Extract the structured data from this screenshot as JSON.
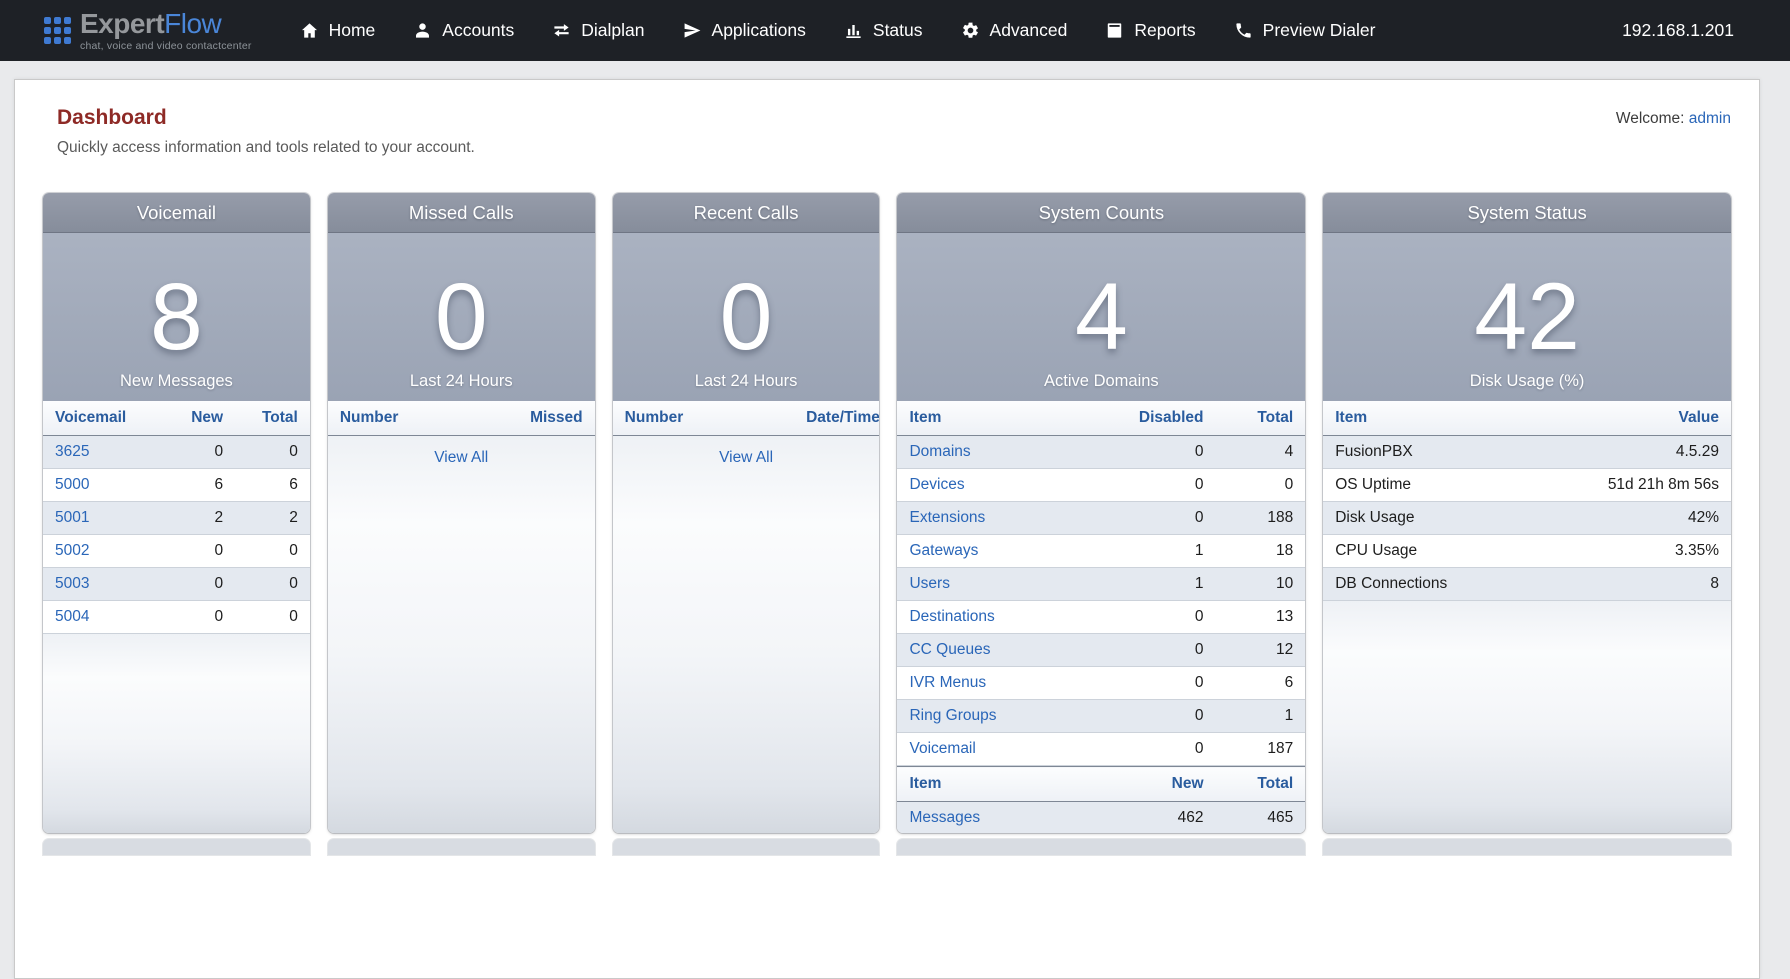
{
  "nav": {
    "logo": {
      "brand_primary": "Expert",
      "brand_secondary": "Flow",
      "tagline": "chat, voice and video contactcenter"
    },
    "items": [
      {
        "id": "home",
        "label": "Home"
      },
      {
        "id": "accounts",
        "label": "Accounts"
      },
      {
        "id": "dialplan",
        "label": "Dialplan"
      },
      {
        "id": "applications",
        "label": "Applications"
      },
      {
        "id": "status",
        "label": "Status"
      },
      {
        "id": "advanced",
        "label": "Advanced"
      },
      {
        "id": "reports",
        "label": "Reports"
      },
      {
        "id": "preview-dialer",
        "label": "Preview Dialer"
      }
    ],
    "server_ip": "192.168.1.201"
  },
  "page": {
    "title": "Dashboard",
    "subtitle": "Quickly access information and tools related to your account.",
    "welcome_label": "Welcome:",
    "welcome_user": "admin"
  },
  "panels": [
    {
      "id": "voicemail",
      "title": "Voicemail",
      "metric": "8",
      "caption": "New Messages",
      "tables": [
        {
          "headers": [
            "Voicemail",
            "New",
            "Total"
          ],
          "first_col_links": true,
          "rows": [
            [
              "3625",
              "0",
              "0"
            ],
            [
              "5000",
              "6",
              "6"
            ],
            [
              "5001",
              "2",
              "2"
            ],
            [
              "5002",
              "0",
              "0"
            ],
            [
              "5003",
              "0",
              "0"
            ],
            [
              "5004",
              "0",
              "0"
            ]
          ]
        }
      ]
    },
    {
      "id": "missed-calls",
      "title": "Missed Calls",
      "metric": "0",
      "caption": "Last 24 Hours",
      "tables": [
        {
          "headers": [
            "Number",
            "Missed"
          ],
          "first_col_links": false,
          "rows": []
        }
      ],
      "view_all": "View All"
    },
    {
      "id": "recent-calls",
      "title": "Recent Calls",
      "metric": "0",
      "caption": "Last 24 Hours",
      "tables": [
        {
          "headers": [
            "Number",
            "Date/Time"
          ],
          "first_col_links": false,
          "rows": []
        }
      ],
      "view_all": "View All"
    },
    {
      "id": "system-counts",
      "title": "System Counts",
      "metric": "4",
      "caption": "Active Domains",
      "tables": [
        {
          "headers": [
            "Item",
            "Disabled",
            "Total"
          ],
          "first_col_links": true,
          "rows": [
            [
              "Domains",
              "0",
              "4"
            ],
            [
              "Devices",
              "0",
              "0"
            ],
            [
              "Extensions",
              "0",
              "188"
            ],
            [
              "Gateways",
              "1",
              "18"
            ],
            [
              "Users",
              "1",
              "10"
            ],
            [
              "Destinations",
              "0",
              "13"
            ],
            [
              "CC Queues",
              "0",
              "12"
            ],
            [
              "IVR Menus",
              "0",
              "6"
            ],
            [
              "Ring Groups",
              "0",
              "1"
            ],
            [
              "Voicemail",
              "0",
              "187"
            ]
          ]
        },
        {
          "headers": [
            "Item",
            "New",
            "Total"
          ],
          "first_col_links": true,
          "rows": [
            [
              "Messages",
              "462",
              "465"
            ]
          ]
        }
      ]
    },
    {
      "id": "system-status",
      "title": "System Status",
      "metric": "42",
      "caption": "Disk Usage (%)",
      "tables": [
        {
          "headers": [
            "Item",
            "Value"
          ],
          "first_col_links": false,
          "rows": [
            [
              "FusionPBX",
              "4.5.29"
            ],
            [
              "OS Uptime",
              "51d 21h 8m 56s"
            ],
            [
              "Disk Usage",
              "42%"
            ],
            [
              "CPU Usage",
              "3.35%"
            ],
            [
              "DB Connections",
              "8"
            ]
          ]
        }
      ]
    }
  ],
  "colors": {
    "nav_bg": "#1e2126",
    "brand_blue": "#4a86d8",
    "brand_gray": "#95989c",
    "heading_red": "#8e2a26",
    "link_blue": "#2a66b8",
    "table_header_blue": "#2a5c9e",
    "panel_header_gray": "#8a919e",
    "panel_hero_gray_blue": "#a2aaba"
  }
}
